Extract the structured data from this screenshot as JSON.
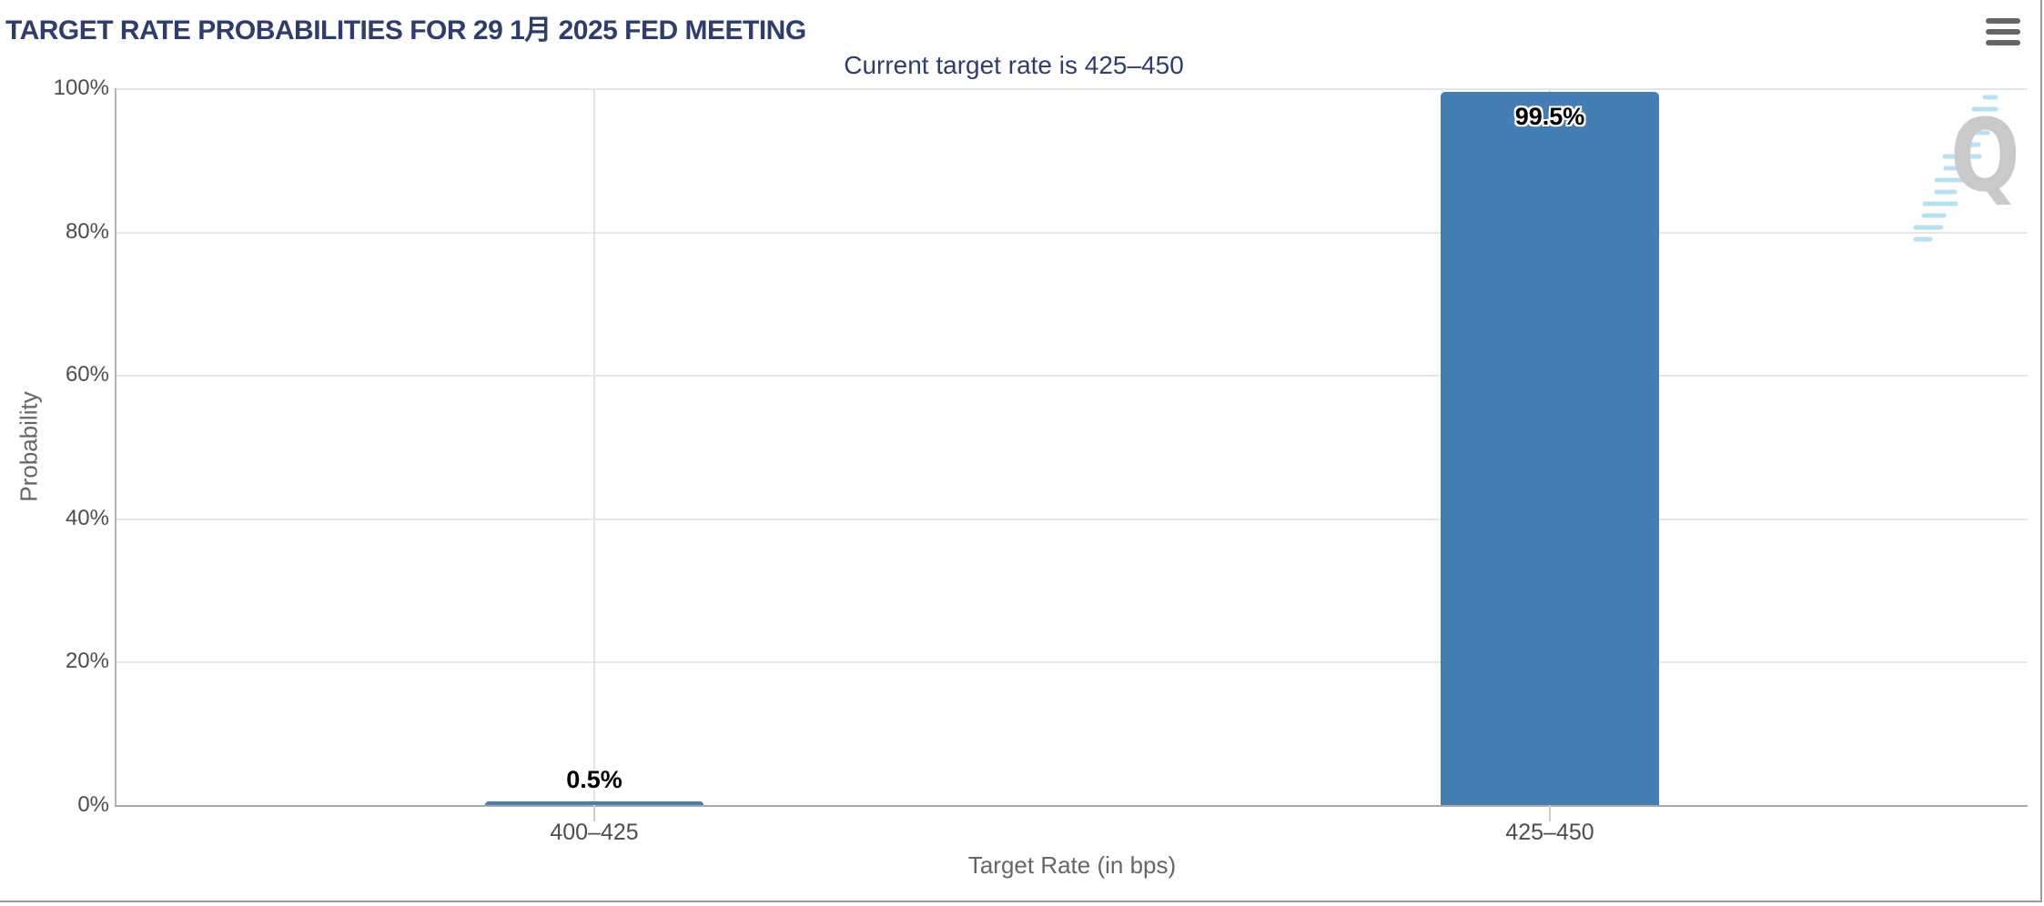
{
  "header": {
    "menu_icon": "hamburger-menu-icon"
  },
  "chart_data": {
    "type": "bar",
    "title": "TARGET RATE PROBABILITIES FOR 29 1月 2025 FED MEETING",
    "subtitle": "Current target rate is 425–450",
    "categories": [
      "400–425",
      "425–450"
    ],
    "values": [
      0.5,
      99.5
    ],
    "value_labels": [
      "0.5%",
      "99.5%"
    ],
    "xlabel": "Target Rate (in bps)",
    "ylabel": "Probability",
    "ylim": [
      0,
      100
    ],
    "ytick_labels": [
      "0%",
      "20%",
      "40%",
      "60%",
      "80%",
      "100%"
    ],
    "grid": true,
    "legend": "none",
    "bar_color": "#447EB4"
  },
  "watermark": {
    "letter": "Q"
  },
  "colors": {
    "title": "#2E3D6E",
    "bar": "#447EB4",
    "tick_text": "#4D4D4D",
    "axis_title_text": "#666666",
    "gridline": "#E6E6E6",
    "label_text": "#000000"
  }
}
